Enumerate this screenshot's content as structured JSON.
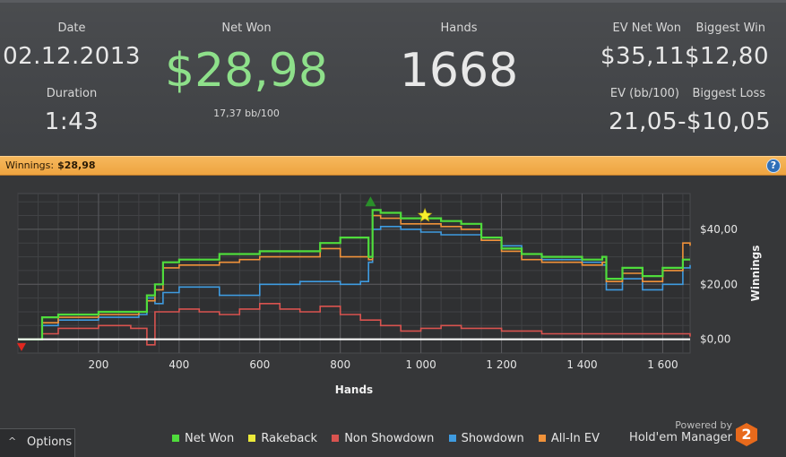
{
  "summary": {
    "date_label": "Date",
    "date_value": "02.12.2013",
    "duration_label": "Duration",
    "duration_value": "1:43",
    "net_won_label": "Net Won",
    "net_won_value": "$28,98",
    "net_won_sub": "17,37 bb/100",
    "hands_label": "Hands",
    "hands_value": "1668",
    "ev_net_won_label": "EV Net Won",
    "ev_net_won_value": "$35,11",
    "biggest_win_label": "Biggest Win",
    "biggest_win_value": "$12,80",
    "ev_bb_label": "EV (bb/100)",
    "ev_bb_value": "21,05",
    "biggest_loss_label": "Biggest Loss",
    "biggest_loss_value": "-$10,05"
  },
  "strip": {
    "label": "Winnings:",
    "value": "$28,98",
    "help_icon": "?"
  },
  "footer": {
    "options_icon": "^",
    "options_label": "Options",
    "powered_by": "Powered by",
    "brand": "Hold'em Manager",
    "logo_text": "2"
  },
  "colors": {
    "net_won": "#4fdc3c",
    "rakeback": "#ecea3a",
    "non_showdown": "#d9534f",
    "showdown": "#3f9be0",
    "all_in_ev": "#f0923a"
  },
  "chart_data": {
    "type": "line",
    "xlabel": "Hands",
    "ylabel": "Winnings",
    "xlim": [
      0,
      1668
    ],
    "ylim": [
      -5,
      53
    ],
    "x_ticks": [
      200,
      400,
      600,
      800,
      1000,
      1200,
      1400,
      1600
    ],
    "x_tick_labels": [
      "200",
      "400",
      "600",
      "800",
      "1 000",
      "1 200",
      "1 400",
      "1 600"
    ],
    "y_ticks": [
      0,
      20,
      40
    ],
    "y_tick_labels": [
      "$0,00",
      "$20,00",
      "$40,00"
    ],
    "legend_position": "bottom",
    "markers": {
      "low": {
        "x": 0,
        "y": -3,
        "color": "#e0271f"
      },
      "high": {
        "x": 875,
        "y": 50,
        "color": "#2a8f2a"
      },
      "star": {
        "x": 1010,
        "y": 45,
        "color": "#f7ef2c"
      }
    },
    "series": [
      {
        "name": "Non Showdown",
        "color": "#d9534f",
        "x": [
          0,
          60,
          100,
          200,
          280,
          320,
          340,
          400,
          450,
          500,
          550,
          600,
          650,
          700,
          750,
          800,
          850,
          900,
          950,
          1000,
          1050,
          1100,
          1200,
          1300,
          1400,
          1500,
          1600,
          1668
        ],
        "y": [
          0,
          2,
          4,
          5,
          4,
          -2,
          10,
          11,
          10,
          9,
          11,
          13,
          11,
          10,
          12,
          9,
          7,
          5,
          3,
          4,
          5,
          4,
          3,
          2,
          2,
          2,
          2,
          1
        ]
      },
      {
        "name": "Showdown",
        "color": "#3f9be0",
        "x": [
          0,
          60,
          100,
          200,
          300,
          320,
          340,
          360,
          400,
          500,
          550,
          600,
          700,
          750,
          800,
          850,
          870,
          880,
          900,
          950,
          1000,
          1050,
          1100,
          1150,
          1200,
          1250,
          1300,
          1400,
          1450,
          1460,
          1500,
          1550,
          1600,
          1650,
          1668
        ],
        "y": [
          0,
          5,
          7,
          8,
          9,
          15,
          13,
          17,
          19,
          16,
          16,
          20,
          21,
          21,
          20,
          21,
          28,
          40,
          41,
          40,
          39,
          38,
          38,
          36,
          34,
          31,
          29,
          28,
          27,
          18,
          22,
          18,
          20,
          26,
          27
        ]
      },
      {
        "name": "All-In EV",
        "color": "#f0923a",
        "x": [
          0,
          60,
          100,
          200,
          300,
          320,
          340,
          360,
          400,
          500,
          550,
          600,
          700,
          750,
          800,
          830,
          870,
          880,
          900,
          950,
          1000,
          1050,
          1100,
          1150,
          1200,
          1250,
          1300,
          1400,
          1450,
          1460,
          1500,
          1550,
          1600,
          1650,
          1668
        ],
        "y": [
          0,
          6,
          8,
          9,
          10,
          14,
          18,
          26,
          27,
          28,
          29,
          30,
          30,
          33,
          30,
          30,
          29,
          45,
          44,
          42,
          42,
          41,
          40,
          36,
          32,
          29,
          28,
          27,
          28,
          21,
          24,
          21,
          25,
          35,
          34
        ]
      },
      {
        "name": "Net Won",
        "color": "#4fdc3c",
        "x": [
          0,
          60,
          100,
          200,
          300,
          320,
          340,
          360,
          400,
          500,
          550,
          600,
          700,
          750,
          800,
          830,
          870,
          880,
          900,
          950,
          1000,
          1050,
          1100,
          1150,
          1200,
          1250,
          1300,
          1400,
          1450,
          1460,
          1500,
          1550,
          1600,
          1650,
          1668
        ],
        "y": [
          0,
          8,
          9,
          10,
          10,
          16,
          20,
          28,
          29,
          31,
          31,
          32,
          32,
          35,
          37,
          37,
          30,
          47,
          46,
          44,
          44,
          43,
          42,
          37,
          33,
          31,
          30,
          29,
          30,
          22,
          26,
          23,
          26,
          29,
          29
        ]
      },
      {
        "name": "Rakeback",
        "color": "#ecea3a",
        "x": [
          0,
          1668
        ],
        "y": [
          0,
          0
        ]
      }
    ]
  }
}
